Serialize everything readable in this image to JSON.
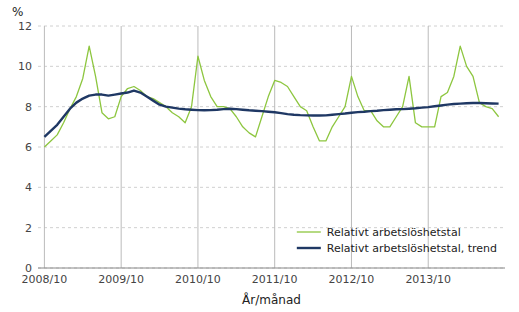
{
  "chart_data": {
    "type": "line",
    "xlabel": "År/månad",
    "ylabel": "%",
    "categories": [
      "2008/10",
      null,
      null,
      null,
      null,
      null,
      null,
      null,
      null,
      null,
      null,
      null,
      "2009/10",
      null,
      null,
      null,
      null,
      null,
      null,
      null,
      null,
      null,
      null,
      null,
      "2010/10",
      null,
      null,
      null,
      null,
      null,
      null,
      null,
      null,
      null,
      null,
      null,
      "2011/10",
      null,
      null,
      null,
      null,
      null,
      null,
      null,
      null,
      null,
      null,
      null,
      "2012/10",
      null,
      null,
      null,
      null,
      null,
      null,
      null,
      null,
      null,
      null,
      null,
      "2013/10",
      null,
      null,
      null,
      null,
      null,
      null,
      null,
      null,
      null,
      null,
      null
    ],
    "series": [
      {
        "name": "Relativt arbetslöshetstal",
        "color": "#8dc63f",
        "values": [
          6.0,
          6.3,
          6.6,
          7.2,
          7.9,
          8.5,
          9.4,
          11.0,
          9.5,
          7.7,
          7.4,
          7.5,
          8.5,
          8.9,
          9.0,
          8.8,
          8.5,
          8.4,
          8.2,
          8.0,
          7.7,
          7.5,
          7.2,
          8.0,
          10.5,
          9.3,
          8.5,
          8.0,
          8.0,
          7.9,
          7.5,
          7.0,
          6.7,
          6.5,
          7.5,
          8.5,
          9.3,
          9.2,
          9.0,
          8.5,
          8.0,
          7.8,
          7.0,
          6.3,
          6.3,
          7.0,
          7.5,
          8.0,
          9.5,
          8.5,
          7.8,
          7.8,
          7.3,
          7.0,
          7.0,
          7.5,
          8.0,
          9.5,
          7.2,
          7.0,
          7.0,
          7.0,
          8.5,
          8.7,
          9.5,
          11.0,
          10.0,
          9.5,
          8.2,
          8.0,
          7.9,
          7.5
        ]
      },
      {
        "name": "Relativt arbetslöshetstal, trend",
        "color": "#1f3864",
        "values": [
          6.5,
          6.8,
          7.1,
          7.5,
          7.9,
          8.2,
          8.4,
          8.55,
          8.6,
          8.6,
          8.55,
          8.6,
          8.65,
          8.7,
          8.8,
          8.7,
          8.5,
          8.3,
          8.1,
          8.0,
          7.95,
          7.9,
          7.87,
          7.85,
          7.83,
          7.82,
          7.83,
          7.85,
          7.88,
          7.9,
          7.88,
          7.85,
          7.82,
          7.8,
          7.78,
          7.75,
          7.72,
          7.68,
          7.63,
          7.6,
          7.58,
          7.57,
          7.56,
          7.56,
          7.57,
          7.6,
          7.63,
          7.66,
          7.7,
          7.73,
          7.75,
          7.78,
          7.8,
          7.83,
          7.85,
          7.87,
          7.88,
          7.9,
          7.92,
          7.95,
          7.98,
          8.02,
          8.06,
          8.1,
          8.13,
          8.15,
          8.17,
          8.18,
          8.18,
          8.17,
          8.16,
          8.15
        ]
      }
    ],
    "ylim": [
      0,
      12
    ],
    "yticks": [
      0,
      2,
      4,
      6,
      8,
      10,
      12
    ],
    "grid": true,
    "legend": "lower right"
  }
}
